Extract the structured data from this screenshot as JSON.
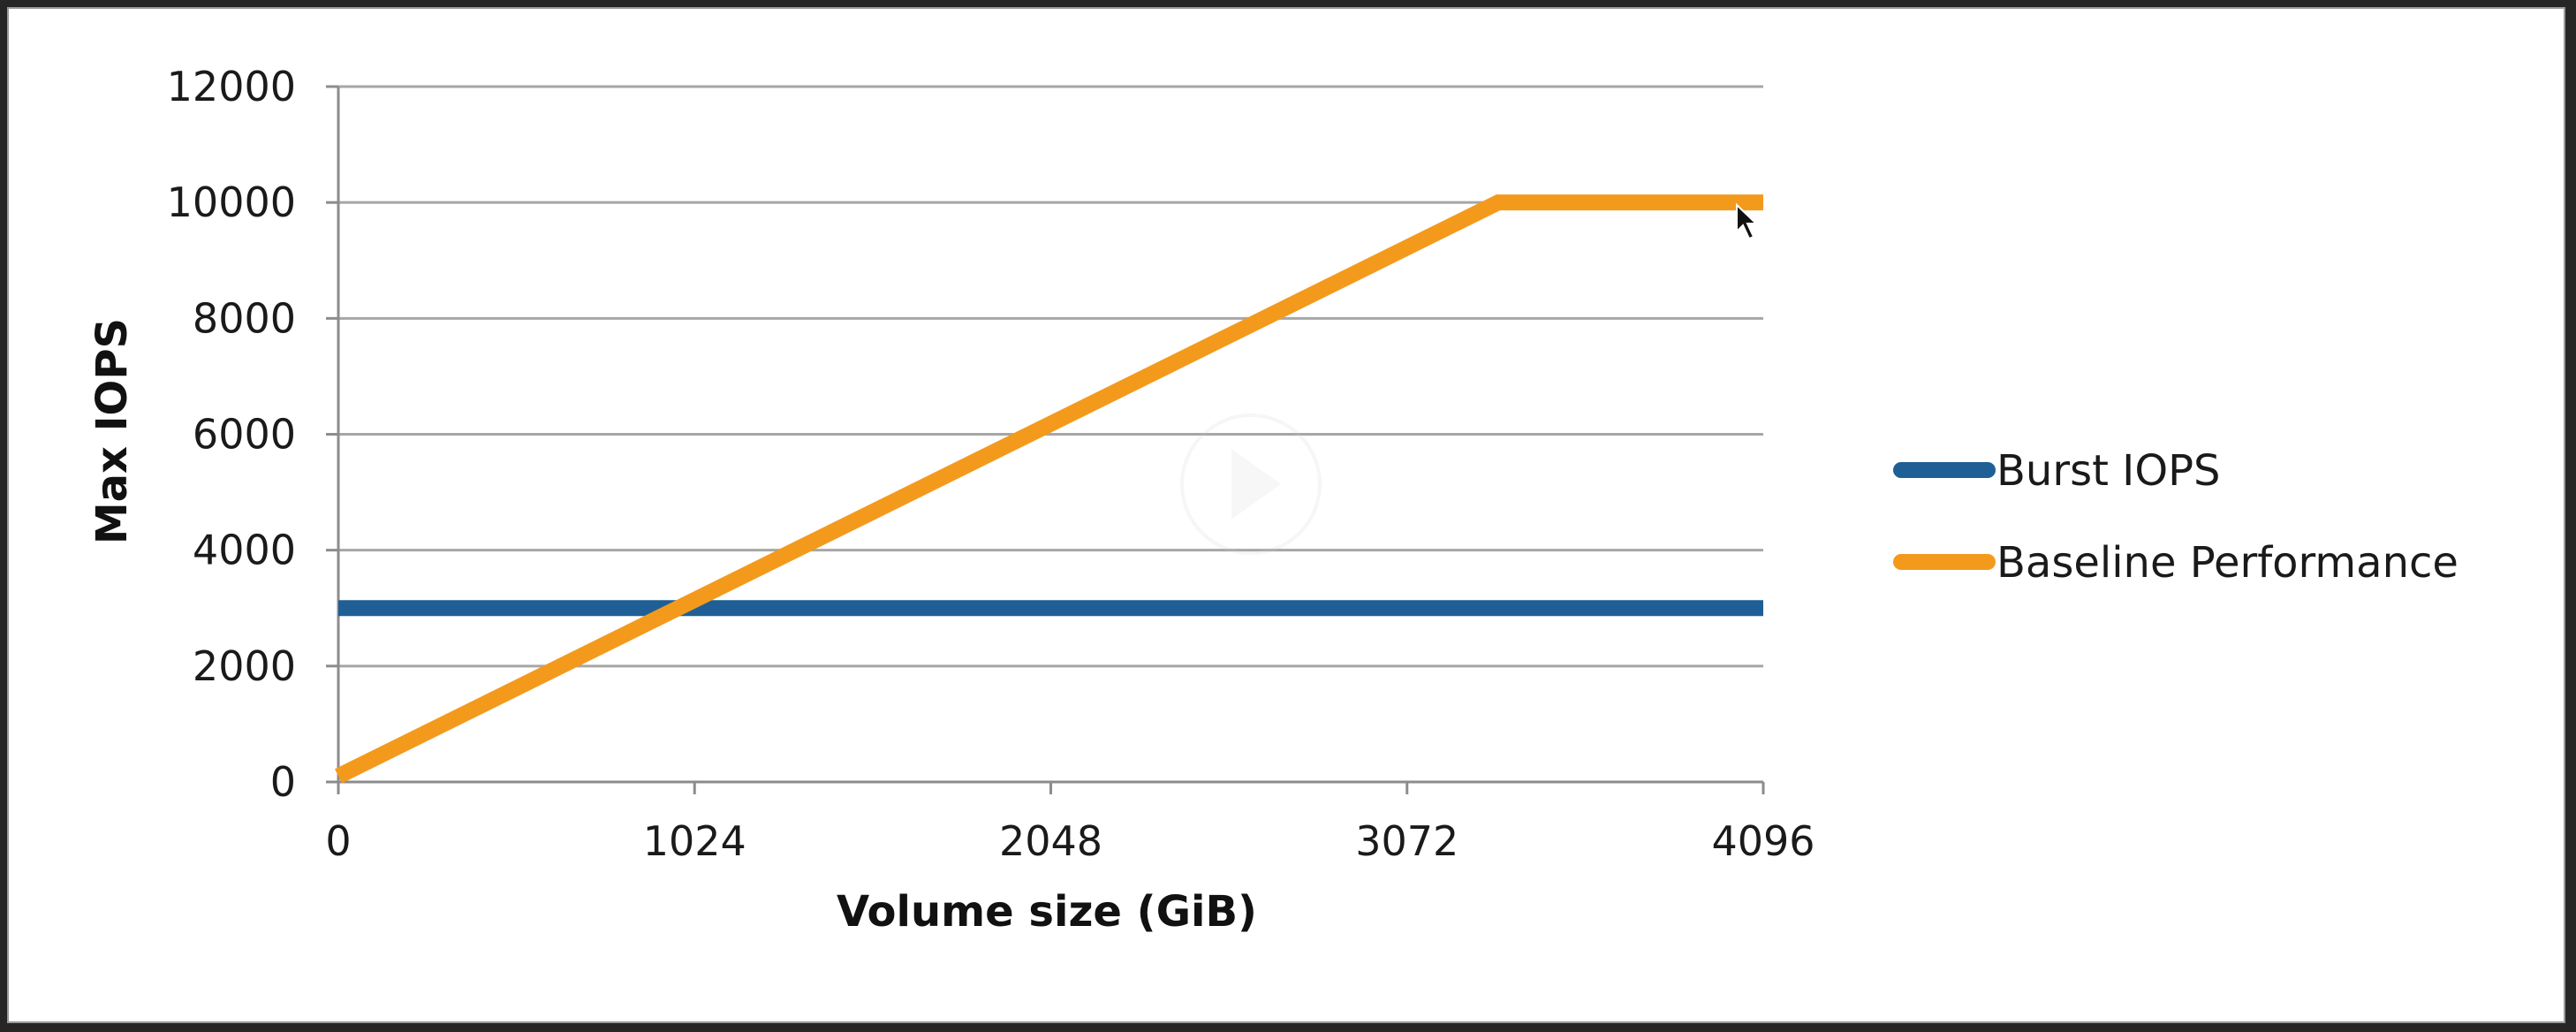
{
  "chart_data": {
    "type": "line",
    "xlabel": "Volume size (GiB)",
    "ylabel": "Max IOPS",
    "xlim": [
      0,
      4096
    ],
    "ylim": [
      0,
      12000
    ],
    "x_ticks": [
      0,
      1024,
      2048,
      3072,
      4096
    ],
    "y_ticks": [
      0,
      2000,
      4000,
      6000,
      8000,
      10000,
      12000
    ],
    "grid": "horizontal",
    "legend_position": "right",
    "series": [
      {
        "name": "Burst IOPS",
        "color": "#1f5f95",
        "points": [
          [
            0,
            3000
          ],
          [
            4096,
            3000
          ]
        ]
      },
      {
        "name": "Baseline Performance",
        "color": "#f39a1d",
        "points": [
          [
            0,
            100
          ],
          [
            3334,
            10000
          ],
          [
            4096,
            10000
          ]
        ]
      }
    ]
  },
  "overlay": {
    "play_icon": "play-icon",
    "cursor_icon": "mouse-pointer-icon"
  }
}
